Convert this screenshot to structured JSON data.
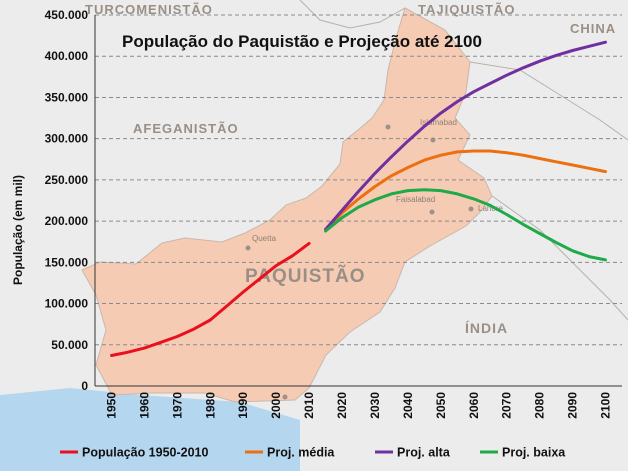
{
  "chart_data": {
    "type": "line",
    "title": "População do Paquistão  e Projeção até 2100",
    "ylabel": "População (em mil)",
    "xlabel": "",
    "ylim": [
      0,
      450000
    ],
    "xlim": [
      1945,
      2105
    ],
    "y_ticks": [
      "0",
      "50.000",
      "100.000",
      "150.000",
      "200.000",
      "250.000",
      "300.000",
      "350.000",
      "400.000",
      "450.000"
    ],
    "x_ticks": [
      "1950",
      "1960",
      "1970",
      "1980",
      "1990",
      "2000",
      "2010",
      "2020",
      "2030",
      "2040",
      "2050",
      "2060",
      "2070",
      "2080",
      "2090",
      "2100"
    ],
    "grid": true,
    "legend_position": "bottom",
    "series": [
      {
        "name": "População 1950-2010",
        "color": "#e8111d",
        "x": [
          1950,
          1955,
          1960,
          1965,
          1970,
          1975,
          1980,
          1985,
          1990,
          1995,
          2000,
          2005,
          2010
        ],
        "values": [
          37000,
          41000,
          46000,
          53000,
          60000,
          69000,
          80000,
          97000,
          114000,
          130000,
          146000,
          158000,
          173000
        ]
      },
      {
        "name": "Proj. média",
        "color": "#ec6f12",
        "x": [
          2015,
          2020,
          2025,
          2030,
          2035,
          2040,
          2045,
          2050,
          2055,
          2060,
          2065,
          2070,
          2075,
          2080,
          2085,
          2090,
          2095,
          2100
        ],
        "values": [
          190000,
          210000,
          227000,
          242000,
          255000,
          265000,
          274000,
          280000,
          284000,
          285000,
          285000,
          283000,
          280000,
          276000,
          272000,
          268000,
          264000,
          260000
        ]
      },
      {
        "name": "Proj. alta",
        "color": "#7030a0",
        "x": [
          2015,
          2020,
          2025,
          2030,
          2035,
          2040,
          2045,
          2050,
          2055,
          2060,
          2065,
          2070,
          2075,
          2080,
          2085,
          2090,
          2095,
          2100
        ],
        "values": [
          190000,
          213000,
          236000,
          258000,
          278000,
          297000,
          315000,
          331000,
          345000,
          357000,
          367000,
          377000,
          386000,
          394000,
          401000,
          407000,
          412000,
          417000
        ]
      },
      {
        "name": "Proj. baixa",
        "color": "#1faa4a",
        "x": [
          2015,
          2020,
          2025,
          2030,
          2035,
          2040,
          2045,
          2050,
          2055,
          2060,
          2065,
          2070,
          2075,
          2080,
          2085,
          2090,
          2095,
          2100
        ],
        "values": [
          188000,
          204000,
          217000,
          226000,
          233000,
          237000,
          238000,
          237000,
          233000,
          227000,
          219000,
          208000,
          196000,
          185000,
          174000,
          164000,
          157000,
          153000
        ]
      }
    ]
  },
  "map": {
    "labels": [
      "TURCOMENISTÃO",
      "TAJIQUISTÃO",
      "CHINA",
      "AFEGANISTÃO",
      "PAQUISTÃO",
      "ÍNDIA"
    ],
    "cities": [
      "Islamabad",
      "Quetta",
      "Faisalabad",
      "Lahore"
    ]
  }
}
